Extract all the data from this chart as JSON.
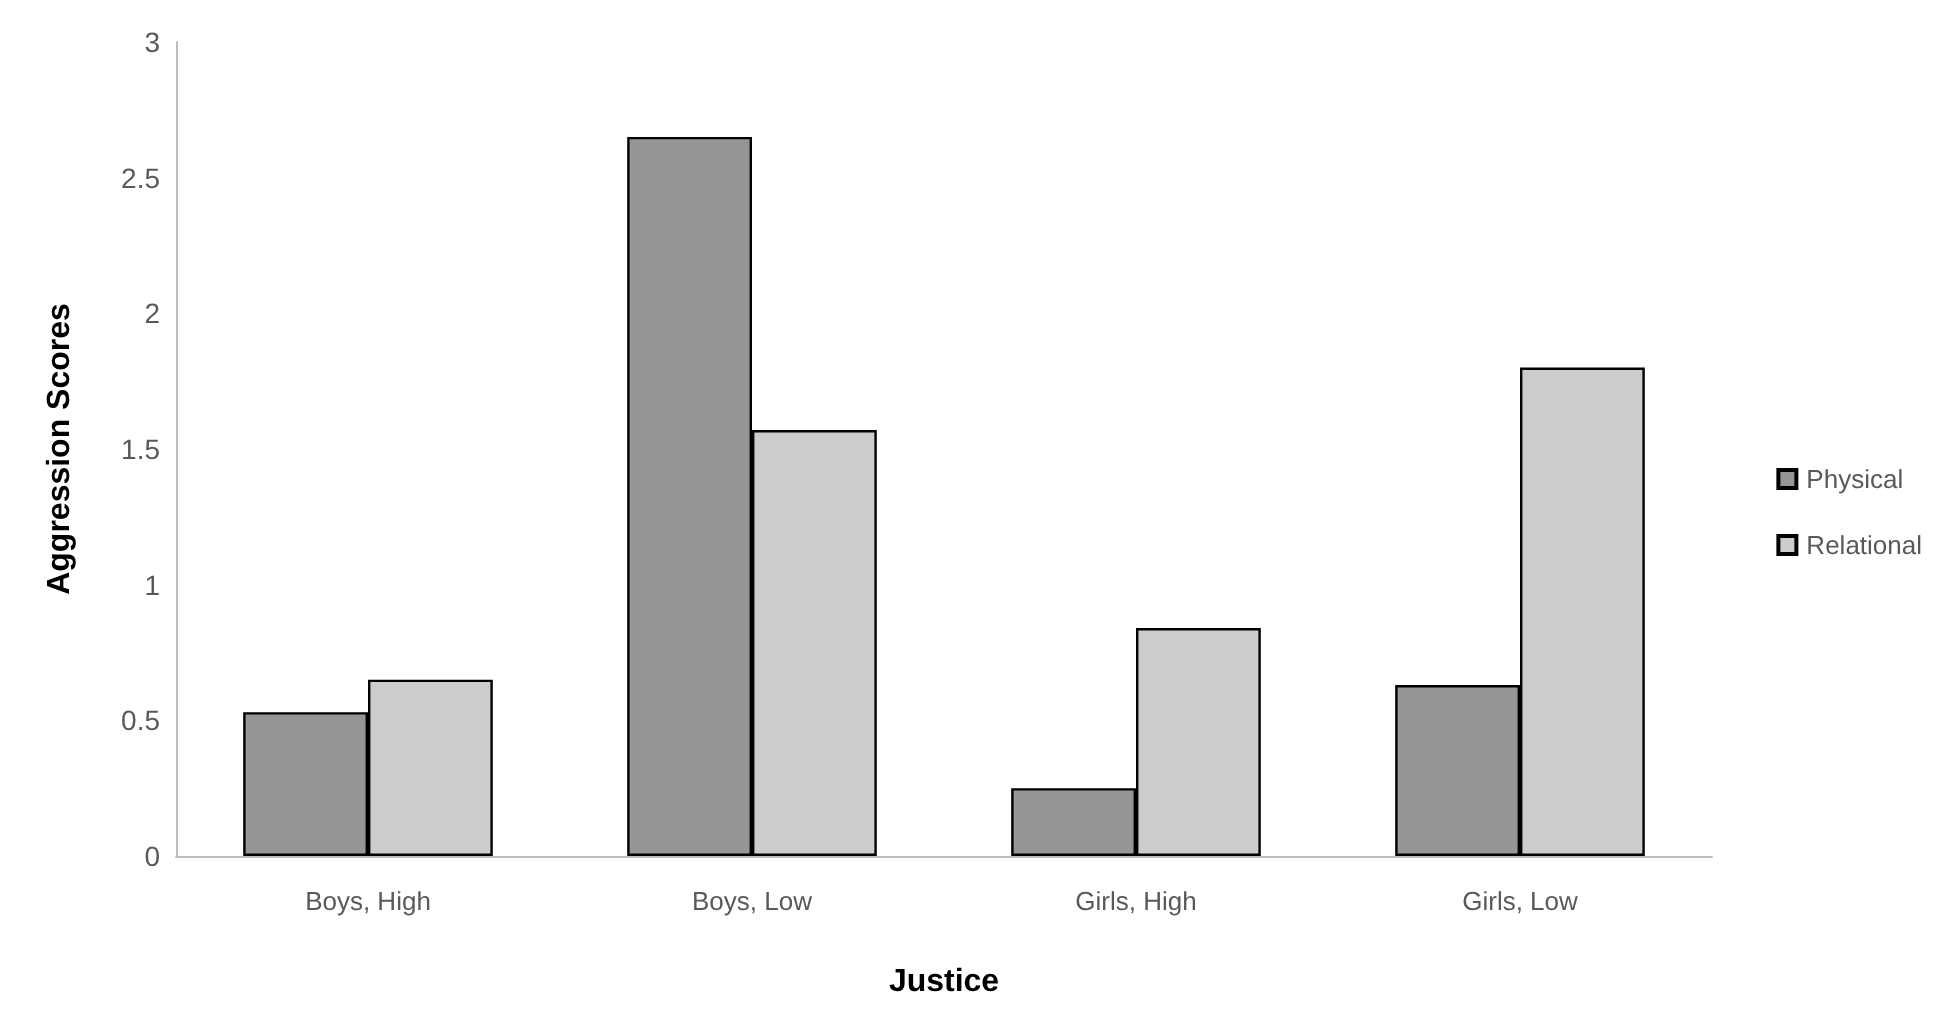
{
  "chart_data": {
    "type": "bar",
    "xlabel": "Justice",
    "ylabel": "Aggression Scores",
    "categories": [
      "Boys, High",
      "Boys, Low",
      "Girls, High",
      "Girls, Low"
    ],
    "series": [
      {
        "name": "Physical",
        "color": "#969696",
        "values": [
          0.53,
          2.65,
          0.25,
          0.63
        ]
      },
      {
        "name": "Relational",
        "color": "#cccccc",
        "values": [
          0.65,
          1.57,
          0.84,
          1.8
        ]
      }
    ],
    "ylim": [
      0,
      3
    ],
    "yticks": [
      0,
      0.5,
      1,
      1.5,
      2,
      2.5,
      3
    ],
    "grid": false,
    "legend": "right"
  }
}
